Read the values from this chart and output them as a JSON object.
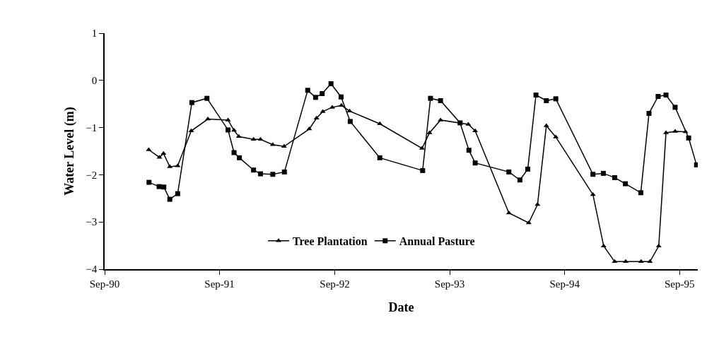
{
  "chart_data": {
    "type": "line",
    "xlabel": "Date",
    "ylabel": "Water Level (m)",
    "xlim": [
      "1990-09-01",
      "1995-10-29"
    ],
    "xticks": [
      {
        "value": "1990-09-01",
        "label": "Sep-90"
      },
      {
        "value": "1991-09-01",
        "label": "Sep-91"
      },
      {
        "value": "1992-09-01",
        "label": "Sep-92"
      },
      {
        "value": "1993-09-01",
        "label": "Sep-93"
      },
      {
        "value": "1994-09-01",
        "label": "Sep-94"
      },
      {
        "value": "1995-09-01",
        "label": "Sep-95"
      }
    ],
    "ylim": [
      -4,
      1
    ],
    "yticks": [
      -4,
      -3,
      -2,
      -1,
      0,
      1
    ],
    "grid": false,
    "legend": "bottom",
    "series": [
      {
        "name": "Tree Plantation",
        "color": "#000000",
        "marker": "triangle",
        "x": [
          "1991-01-19",
          "1991-02-22",
          "1991-03-07",
          "1991-03-27",
          "1991-04-21",
          "1991-06-03",
          "1991-07-26",
          "1991-09-28",
          "1991-10-17",
          "1991-11-01",
          "1991-12-18",
          "1992-01-09",
          "1992-02-17",
          "1992-03-24",
          "1992-06-12",
          "1992-07-05",
          "1992-07-25",
          "1992-08-24",
          "1992-09-22",
          "1992-10-18",
          "1993-01-22",
          "1993-06-05",
          "1993-06-29",
          "1993-08-03",
          "1993-10-30",
          "1993-11-21",
          "1994-03-08",
          "1994-05-10",
          "1994-06-07",
          "1994-07-05",
          "1994-08-04",
          "1994-11-30",
          "1995-01-03",
          "1995-02-07",
          "1995-03-14",
          "1995-05-02",
          "1995-05-30",
          "1995-06-27",
          "1995-07-20",
          "1995-08-18",
          "1995-09-20"
        ],
        "values": [
          -1.47,
          -1.63,
          -1.55,
          -1.83,
          -1.81,
          -1.07,
          -0.82,
          -0.84,
          -1.06,
          -1.19,
          -1.25,
          -1.25,
          -1.36,
          -1.4,
          -1.03,
          -0.8,
          -0.66,
          -0.57,
          -0.53,
          -0.65,
          -0.92,
          -1.44,
          -1.11,
          -0.84,
          -0.93,
          -1.07,
          -2.81,
          -3.02,
          -2.63,
          -0.96,
          -1.2,
          -2.42,
          -3.51,
          -3.84,
          -3.84,
          -3.84,
          -3.84,
          -3.51,
          -1.11,
          -1.08,
          -1.09
        ]
      },
      {
        "name": "Annual Pasture",
        "color": "#000000",
        "marker": "square",
        "x": [
          "1991-01-20",
          "1991-02-21",
          "1991-03-08",
          "1991-03-27",
          "1991-04-21",
          "1991-06-05",
          "1991-07-23",
          "1991-09-28",
          "1991-10-17",
          "1991-11-03",
          "1991-12-18",
          "1992-01-09",
          "1992-02-17",
          "1992-03-25",
          "1992-06-07",
          "1992-07-02",
          "1992-07-23",
          "1992-08-20",
          "1992-09-21",
          "1992-10-20",
          "1993-01-22",
          "1993-06-07",
          "1993-07-02",
          "1993-08-03",
          "1993-10-04",
          "1993-11-01",
          "1993-11-21",
          "1994-03-08",
          "1994-04-12",
          "1994-05-07",
          "1994-06-02",
          "1994-07-05",
          "1994-08-04",
          "1994-11-30",
          "1995-01-02",
          "1995-02-07",
          "1995-03-13",
          "1995-05-01",
          "1995-05-27",
          "1995-06-25",
          "1995-07-20",
          "1995-08-18",
          "1995-09-30",
          "1995-10-25"
        ],
        "values": [
          -2.16,
          -2.25,
          -2.26,
          -2.52,
          -2.4,
          -0.47,
          -0.38,
          -1.05,
          -1.53,
          -1.64,
          -1.9,
          -1.98,
          -1.99,
          -1.94,
          -0.21,
          -0.36,
          -0.28,
          -0.07,
          -0.35,
          -0.87,
          -1.64,
          -1.91,
          -0.38,
          -0.43,
          -0.9,
          -1.48,
          -1.75,
          -1.94,
          -2.11,
          -1.88,
          -0.31,
          -0.43,
          -0.39,
          -1.99,
          -1.97,
          -2.06,
          -2.19,
          -2.38,
          -0.7,
          -0.34,
          -0.31,
          -0.57,
          -1.22,
          -1.79
        ]
      }
    ]
  }
}
